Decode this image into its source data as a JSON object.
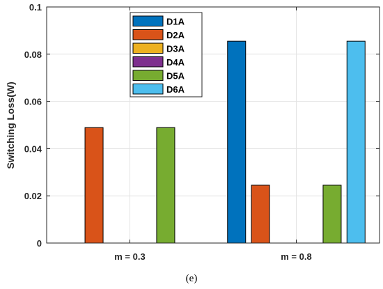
{
  "chart_data": {
    "type": "bar",
    "categories": [
      "m = 0.3",
      "m = 0.8"
    ],
    "series": [
      {
        "name": "D1A",
        "color": "#0072BD",
        "values": [
          0,
          0.0855
        ]
      },
      {
        "name": "D2A",
        "color": "#D95319",
        "values": [
          0.0489,
          0.0245
        ]
      },
      {
        "name": "D3A",
        "color": "#EDB120",
        "values": [
          0,
          0
        ]
      },
      {
        "name": "D4A",
        "color": "#7E2F8E",
        "values": [
          0,
          0
        ]
      },
      {
        "name": "D5A",
        "color": "#77AC30",
        "values": [
          0.0489,
          0.0245
        ]
      },
      {
        "name": "D6A",
        "color": "#4DBEEE",
        "values": [
          0,
          0.0855
        ]
      }
    ],
    "ylabel": "Switching Loss(W)",
    "xlabel": "",
    "ylim": [
      0,
      0.1
    ],
    "yticks": [
      0,
      0.02,
      0.04,
      0.06,
      0.08,
      0.1
    ],
    "ytick_labels": [
      "0",
      "0.02",
      "0.04",
      "0.06",
      "0.08",
      "0.1"
    ],
    "grid": true,
    "legend_position": "top-left-inside"
  },
  "caption": "(e)"
}
